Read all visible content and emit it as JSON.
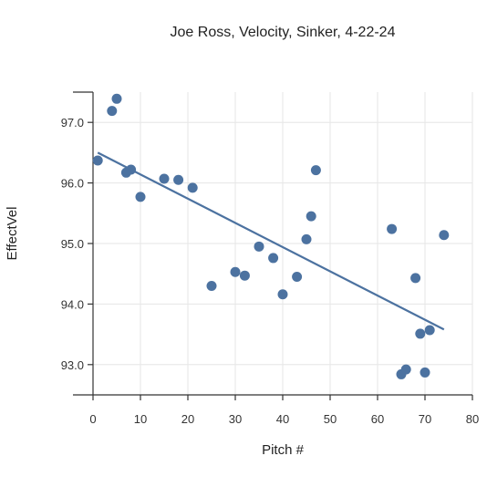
{
  "chart_data": {
    "type": "scatter",
    "title": "Joe Ross, Velocity, Sinker, 4-22-24",
    "xlabel": "Pitch #",
    "ylabel": "EffectVel",
    "xlim": [
      0,
      80
    ],
    "ylim": [
      92.5,
      97.5
    ],
    "x_ticks": [
      0,
      10,
      20,
      30,
      40,
      50,
      60,
      70,
      80
    ],
    "y_ticks": [
      93.0,
      94.0,
      95.0,
      96.0,
      97.0
    ],
    "y_tick_labels": [
      "93.0",
      "94.0",
      "95.0",
      "96.0",
      "97.0"
    ],
    "grid": true,
    "legend": "none",
    "point_color": "#4c72a0",
    "trendline_color": "#4c72a0",
    "series": [
      {
        "points": [
          {
            "x": 1,
            "y": 96.37
          },
          {
            "x": 4,
            "y": 97.19
          },
          {
            "x": 5,
            "y": 97.39
          },
          {
            "x": 7,
            "y": 96.17
          },
          {
            "x": 8,
            "y": 96.22
          },
          {
            "x": 10,
            "y": 95.77
          },
          {
            "x": 15,
            "y": 96.07
          },
          {
            "x": 18,
            "y": 96.05
          },
          {
            "x": 21,
            "y": 95.92
          },
          {
            "x": 25,
            "y": 94.3
          },
          {
            "x": 30,
            "y": 94.53
          },
          {
            "x": 32,
            "y": 94.47
          },
          {
            "x": 35,
            "y": 94.95
          },
          {
            "x": 38,
            "y": 94.76
          },
          {
            "x": 40,
            "y": 94.16
          },
          {
            "x": 43,
            "y": 94.45
          },
          {
            "x": 45,
            "y": 95.07
          },
          {
            "x": 46,
            "y": 95.45
          },
          {
            "x": 47,
            "y": 96.21
          },
          {
            "x": 63,
            "y": 95.24
          },
          {
            "x": 65,
            "y": 92.84
          },
          {
            "x": 66,
            "y": 92.92
          },
          {
            "x": 68,
            "y": 94.43
          },
          {
            "x": 69,
            "y": 93.51
          },
          {
            "x": 70,
            "y": 92.87
          },
          {
            "x": 71,
            "y": 93.57
          },
          {
            "x": 74,
            "y": 95.14
          }
        ]
      }
    ],
    "trendline": {
      "x": [
        1,
        74
      ],
      "y": [
        96.5,
        93.58
      ]
    }
  }
}
